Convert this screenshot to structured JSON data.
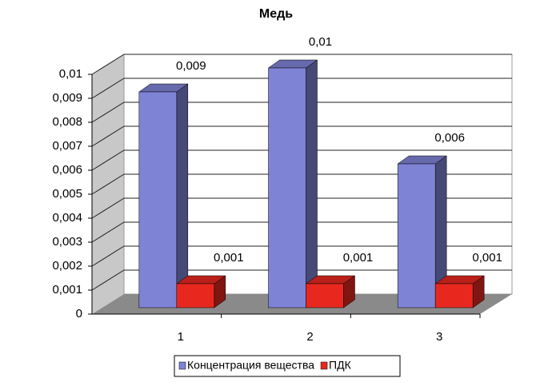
{
  "chart_data": {
    "type": "bar3d",
    "title": "Медь",
    "categories": [
      "1",
      "2",
      "3"
    ],
    "series": [
      {
        "name": "Концентрация вещества",
        "color": "#7f83d6",
        "values": [
          0.009,
          0.01,
          0.006
        ],
        "value_labels": [
          "0,009",
          "0,01",
          "0,006"
        ]
      },
      {
        "name": "ПДК",
        "color": "#e8281f",
        "values": [
          0.001,
          0.001,
          0.001
        ],
        "value_labels": [
          "0,001",
          "0,001",
          "0,001"
        ]
      }
    ],
    "ylim": [
      0,
      0.01
    ],
    "yticks": [
      0,
      {
        "value": 0.001,
        "label": "0,001"
      },
      {
        "value": 0.002,
        "label": "0,002"
      },
      {
        "value": 0.003,
        "label": "0,003"
      },
      {
        "value": 0.004,
        "label": "0,004"
      },
      {
        "value": 0.005,
        "label": "0,005"
      },
      {
        "value": 0.006,
        "label": "0,006"
      },
      {
        "value": 0.007,
        "label": "0,007"
      },
      {
        "value": 0.008,
        "label": "0,008"
      },
      {
        "value": 0.009,
        "label": "0,009"
      },
      {
        "value": 0.01,
        "label": "0,01"
      }
    ],
    "grid": true,
    "legend": "bottom"
  }
}
